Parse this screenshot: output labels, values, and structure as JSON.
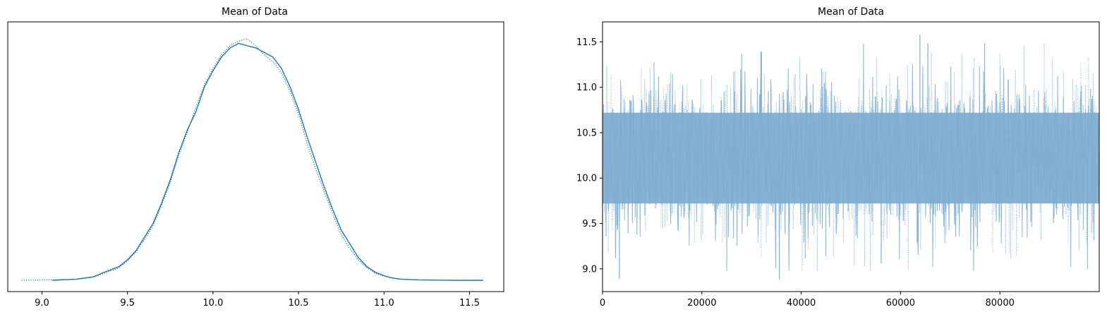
{
  "colors": {
    "line": "#1f77b4",
    "trace_fill": "#7faed3",
    "axis": "#000000"
  },
  "chart_data": [
    {
      "type": "line",
      "title": "Mean of Data",
      "xlabel": "",
      "ylabel": "",
      "xlim": [
        8.8,
        11.7
      ],
      "xticks": [
        "9.0",
        "9.5",
        "10.0",
        "10.5",
        "11.0",
        "11.5"
      ],
      "xtick_values": [
        9.0,
        9.5,
        10.0,
        10.5,
        11.0,
        11.5
      ],
      "yticks_visible": false,
      "grid": false,
      "series": [
        {
          "style": "solid",
          "x": [
            9.06,
            9.2,
            9.3,
            9.38,
            9.45,
            9.5,
            9.55,
            9.6,
            9.65,
            9.7,
            9.75,
            9.8,
            9.85,
            9.9,
            9.95,
            10.0,
            10.05,
            10.1,
            10.15,
            10.2,
            10.25,
            10.3,
            10.35,
            10.4,
            10.45,
            10.5,
            10.55,
            10.6,
            10.65,
            10.7,
            10.75,
            10.8,
            10.85,
            10.9,
            10.95,
            11.0,
            11.05,
            11.1,
            11.2,
            11.3,
            11.4,
            11.58
          ],
          "y": [
            0.0,
            0.005,
            0.015,
            0.04,
            0.06,
            0.09,
            0.13,
            0.19,
            0.25,
            0.34,
            0.44,
            0.56,
            0.66,
            0.74,
            0.85,
            0.92,
            0.98,
            1.02,
            1.04,
            1.03,
            1.02,
            1.0,
            0.98,
            0.93,
            0.85,
            0.75,
            0.63,
            0.52,
            0.41,
            0.31,
            0.22,
            0.16,
            0.1,
            0.06,
            0.035,
            0.02,
            0.01,
            0.005,
            0.002,
            0.001,
            0.0,
            0.0
          ]
        },
        {
          "style": "dotted",
          "x": [
            8.88,
            9.2,
            9.3,
            9.38,
            9.45,
            9.5,
            9.55,
            9.6,
            9.65,
            9.7,
            9.75,
            9.8,
            9.85,
            9.9,
            9.95,
            10.0,
            10.05,
            10.1,
            10.15,
            10.2,
            10.25,
            10.3,
            10.35,
            10.4,
            10.45,
            10.5,
            10.55,
            10.6,
            10.65,
            10.7,
            10.75,
            10.8,
            10.85,
            10.9,
            10.95,
            11.0,
            11.05,
            11.1,
            11.2,
            11.3,
            11.4,
            11.58
          ],
          "y": [
            0.0,
            0.004,
            0.014,
            0.035,
            0.055,
            0.085,
            0.125,
            0.18,
            0.24,
            0.33,
            0.43,
            0.55,
            0.65,
            0.76,
            0.86,
            0.93,
            0.99,
            1.03,
            1.05,
            1.06,
            1.03,
            0.99,
            0.96,
            0.91,
            0.83,
            0.73,
            0.6,
            0.49,
            0.39,
            0.29,
            0.2,
            0.14,
            0.09,
            0.055,
            0.03,
            0.018,
            0.009,
            0.004,
            0.002,
            0.001,
            0.0,
            0.0
          ]
        }
      ]
    },
    {
      "type": "line",
      "title": "Mean of Data",
      "xlabel": "",
      "ylabel": "",
      "xlim": [
        0,
        99999
      ],
      "ylim": [
        8.75,
        11.72
      ],
      "xticks": [
        "0",
        "20000",
        "40000",
        "60000",
        "80000"
      ],
      "xtick_values": [
        0,
        20000,
        40000,
        60000,
        80000
      ],
      "yticks": [
        "9.0",
        "9.5",
        "10.0",
        "10.5",
        "11.0",
        "11.5"
      ],
      "ytick_values": [
        9.0,
        9.5,
        10.0,
        10.5,
        11.0,
        11.5
      ],
      "grid": false,
      "series_summary": {
        "draws": 100000,
        "dense_band_low": 9.55,
        "dense_band_high": 10.9,
        "min": 8.88,
        "max": 11.58
      },
      "notable_points": [
        {
          "x": 3400,
          "y": 8.89
        },
        {
          "x": 35600,
          "y": 8.88
        },
        {
          "x": 63900,
          "y": 11.58
        },
        {
          "x": 65500,
          "y": 11.48
        },
        {
          "x": 56100,
          "y": 9.06
        },
        {
          "x": 32000,
          "y": 11.39
        }
      ]
    }
  ]
}
